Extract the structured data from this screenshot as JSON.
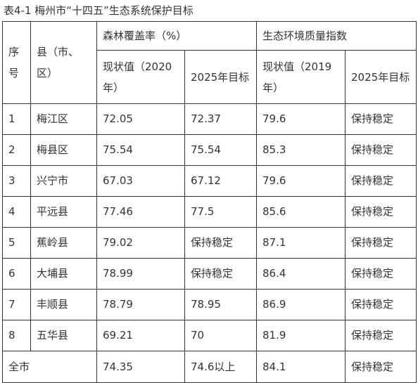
{
  "caption": "表4-1  梅州市“十四五”生态系统保护目标",
  "headers": {
    "seq_a": "序",
    "seq_b": "号",
    "county_a": "县（市、",
    "county_b": "区）",
    "forest_group": "森林覆盖率（%）",
    "forest_current_a": "现状值（2020",
    "forest_current_b": "年）",
    "forest_target": "2025年目标",
    "eco_group": "生态环境质量指数",
    "eco_current_a": "现状值（2019",
    "eco_current_b": "年）",
    "eco_target": "2025年目标"
  },
  "rows": [
    {
      "seq": "1",
      "name": "梅江区",
      "forest_current": "72.05",
      "forest_target": "72.37",
      "eco_current": "79.6",
      "eco_target": "保持稳定"
    },
    {
      "seq": "2",
      "name": "梅县区",
      "forest_current": "75.54",
      "forest_target": "75.54",
      "eco_current": "85.3",
      "eco_target": "保持稳定"
    },
    {
      "seq": "3",
      "name": "兴宁市",
      "forest_current": "67.03",
      "forest_target": "67.12",
      "eco_current": "79.6",
      "eco_target": "保持稳定"
    },
    {
      "seq": "4",
      "name": "平远县",
      "forest_current": "77.46",
      "forest_target": "77.5",
      "eco_current": "85.6",
      "eco_target": "保持稳定"
    },
    {
      "seq": "5",
      "name": "蕉岭县",
      "forest_current": "79.02",
      "forest_target": "保持稳定",
      "eco_current": "87.1",
      "eco_target": "保持稳定"
    },
    {
      "seq": "6",
      "name": "大埔县",
      "forest_current": "78.99",
      "forest_target": "保持稳定",
      "eco_current": "86.4",
      "eco_target": "保持稳定"
    },
    {
      "seq": "7",
      "name": "丰顺县",
      "forest_current": "78.79",
      "forest_target": "78.95",
      "eco_current": "86.9",
      "eco_target": "保持稳定"
    },
    {
      "seq": "8",
      "name": "五华县",
      "forest_current": "69.21",
      "forest_target": "70",
      "eco_current": "81.9",
      "eco_target": "保持稳定"
    }
  ],
  "total": {
    "name": "全市",
    "forest_current": "74.35",
    "forest_target": "74.6以上",
    "eco_current": "84.1",
    "eco_target": "保持稳定"
  }
}
